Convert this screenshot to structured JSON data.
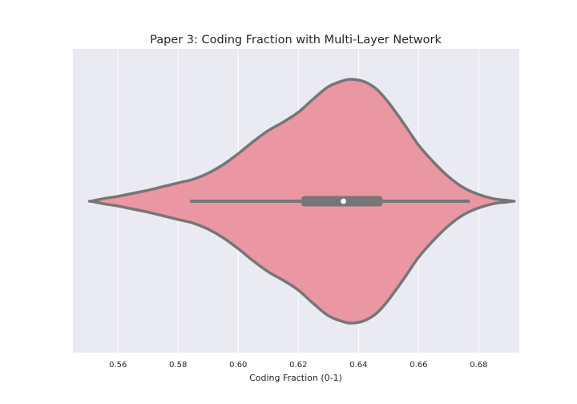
{
  "chart_data": {
    "type": "violin",
    "title": "Paper 3: Coding Fraction with Multi-Layer Network",
    "xlabel": "Coding Fraction (0-1)",
    "ylabel": "",
    "xlim": [
      0.545,
      0.6935
    ],
    "xticks": [
      "0.56",
      "0.58",
      "0.60",
      "0.62",
      "0.64",
      "0.66",
      "0.68"
    ],
    "grid": true,
    "colors": {
      "background": "#eaeaf2",
      "grid": "#ffffff",
      "violin_fill": "#ea96a3",
      "outline": "#767676",
      "median_dot": "#ffffff"
    },
    "violin": {
      "min": 0.584,
      "q1": 0.621,
      "median": 0.635,
      "q3": 0.648,
      "max": 0.677,
      "density_profile": [
        [
          0.551,
          0.0
        ],
        [
          0.555,
          0.02
        ],
        [
          0.56,
          0.04
        ],
        [
          0.565,
          0.065
        ],
        [
          0.57,
          0.09
        ],
        [
          0.575,
          0.12
        ],
        [
          0.58,
          0.15
        ],
        [
          0.585,
          0.18
        ],
        [
          0.59,
          0.23
        ],
        [
          0.595,
          0.3
        ],
        [
          0.6,
          0.39
        ],
        [
          0.605,
          0.49
        ],
        [
          0.61,
          0.58
        ],
        [
          0.615,
          0.65
        ],
        [
          0.62,
          0.73
        ],
        [
          0.625,
          0.84
        ],
        [
          0.63,
          0.94
        ],
        [
          0.635,
          0.99
        ],
        [
          0.638,
          1.0
        ],
        [
          0.642,
          0.98
        ],
        [
          0.646,
          0.92
        ],
        [
          0.65,
          0.81
        ],
        [
          0.655,
          0.64
        ],
        [
          0.66,
          0.46
        ],
        [
          0.665,
          0.32
        ],
        [
          0.67,
          0.2
        ],
        [
          0.675,
          0.11
        ],
        [
          0.68,
          0.055
        ],
        [
          0.685,
          0.02
        ],
        [
          0.689,
          0.008
        ],
        [
          0.6915,
          0.0
        ]
      ]
    }
  }
}
